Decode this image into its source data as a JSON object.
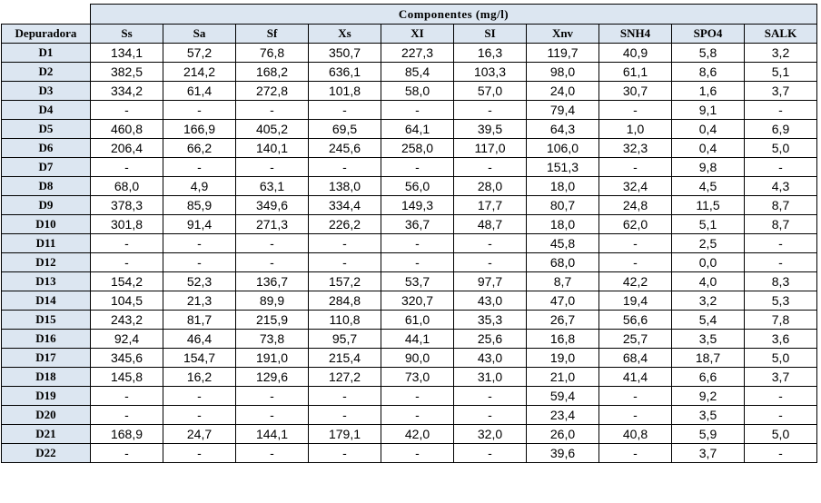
{
  "header": {
    "group_label": "Componentes  (mg/l)",
    "row_header": "Depuradora",
    "columns": [
      "Ss",
      "Sa",
      "Sf",
      "Xs",
      "XI",
      "SI",
      "Xnv",
      "SNH4",
      "SPO4",
      "SALK"
    ]
  },
  "rows": [
    {
      "label": "D1",
      "values": [
        "134,1",
        "57,2",
        "76,8",
        "350,7",
        "227,3",
        "16,3",
        "119,7",
        "40,9",
        "5,8",
        "3,2"
      ]
    },
    {
      "label": "D2",
      "values": [
        "382,5",
        "214,2",
        "168,2",
        "636,1",
        "85,4",
        "103,3",
        "98,0",
        "61,1",
        "8,6",
        "5,1"
      ]
    },
    {
      "label": "D3",
      "values": [
        "334,2",
        "61,4",
        "272,8",
        "101,8",
        "58,0",
        "57,0",
        "24,0",
        "30,7",
        "1,6",
        "3,7"
      ]
    },
    {
      "label": "D4",
      "values": [
        "-",
        "-",
        "-",
        "-",
        "-",
        "-",
        "79,4",
        "-",
        "9,1",
        "-"
      ]
    },
    {
      "label": "D5",
      "values": [
        "460,8",
        "166,9",
        "405,2",
        "69,5",
        "64,1",
        "39,5",
        "64,3",
        "1,0",
        "0,4",
        "6,9"
      ]
    },
    {
      "label": "D6",
      "values": [
        "206,4",
        "66,2",
        "140,1",
        "245,6",
        "258,0",
        "117,0",
        "106,0",
        "32,3",
        "0,4",
        "5,0"
      ]
    },
    {
      "label": "D7",
      "values": [
        "-",
        "-",
        "-",
        "-",
        "-",
        "-",
        "151,3",
        "-",
        "9,8",
        "-"
      ]
    },
    {
      "label": "D8",
      "values": [
        "68,0",
        "4,9",
        "63,1",
        "138,0",
        "56,0",
        "28,0",
        "18,0",
        "32,4",
        "4,5",
        "4,3"
      ]
    },
    {
      "label": "D9",
      "values": [
        "378,3",
        "85,9",
        "349,6",
        "334,4",
        "149,3",
        "17,7",
        "80,7",
        "24,8",
        "11,5",
        "8,7"
      ]
    },
    {
      "label": "D10",
      "values": [
        "301,8",
        "91,4",
        "271,3",
        "226,2",
        "36,7",
        "48,7",
        "18,0",
        "62,0",
        "5,1",
        "8,7"
      ]
    },
    {
      "label": "D11",
      "values": [
        "-",
        "-",
        "-",
        "-",
        "-",
        "-",
        "45,8",
        "-",
        "2,5",
        "-"
      ]
    },
    {
      "label": "D12",
      "values": [
        "-",
        "-",
        "-",
        "-",
        "-",
        "-",
        "68,0",
        "-",
        "0,0",
        "-"
      ]
    },
    {
      "label": "D13",
      "values": [
        "154,2",
        "52,3",
        "136,7",
        "157,2",
        "53,7",
        "97,7",
        "8,7",
        "42,2",
        "4,0",
        "8,3"
      ]
    },
    {
      "label": "D14",
      "values": [
        "104,5",
        "21,3",
        "89,9",
        "284,8",
        "320,7",
        "43,0",
        "47,0",
        "19,4",
        "3,2",
        "5,3"
      ]
    },
    {
      "label": "D15",
      "values": [
        "243,2",
        "81,7",
        "215,9",
        "110,8",
        "61,0",
        "35,3",
        "26,7",
        "56,6",
        "5,4",
        "7,8"
      ]
    },
    {
      "label": "D16",
      "values": [
        "92,4",
        "46,4",
        "73,8",
        "95,7",
        "44,1",
        "25,6",
        "16,8",
        "25,7",
        "3,5",
        "3,6"
      ]
    },
    {
      "label": "D17",
      "values": [
        "345,6",
        "154,7",
        "191,0",
        "215,4",
        "90,0",
        "43,0",
        "19,0",
        "68,4",
        "18,7",
        "5,0"
      ]
    },
    {
      "label": "D18",
      "values": [
        "145,8",
        "16,2",
        "129,6",
        "127,2",
        "73,0",
        "31,0",
        "21,0",
        "41,4",
        "6,6",
        "3,7"
      ]
    },
    {
      "label": "D19",
      "values": [
        "-",
        "-",
        "-",
        "-",
        "-",
        "-",
        "59,4",
        "-",
        "9,2",
        "-"
      ]
    },
    {
      "label": "D20",
      "values": [
        "-",
        "-",
        "-",
        "-",
        "-",
        "-",
        "23,4",
        "-",
        "3,5",
        "-"
      ]
    },
    {
      "label": "D21",
      "values": [
        "168,9",
        "24,7",
        "144,1",
        "179,1",
        "42,0",
        "32,0",
        "26,0",
        "40,8",
        "5,9",
        "5,0"
      ]
    },
    {
      "label": "D22",
      "values": [
        "-",
        "-",
        "-",
        "-",
        "-",
        "-",
        "39,6",
        "-",
        "3,7",
        "-"
      ]
    }
  ]
}
